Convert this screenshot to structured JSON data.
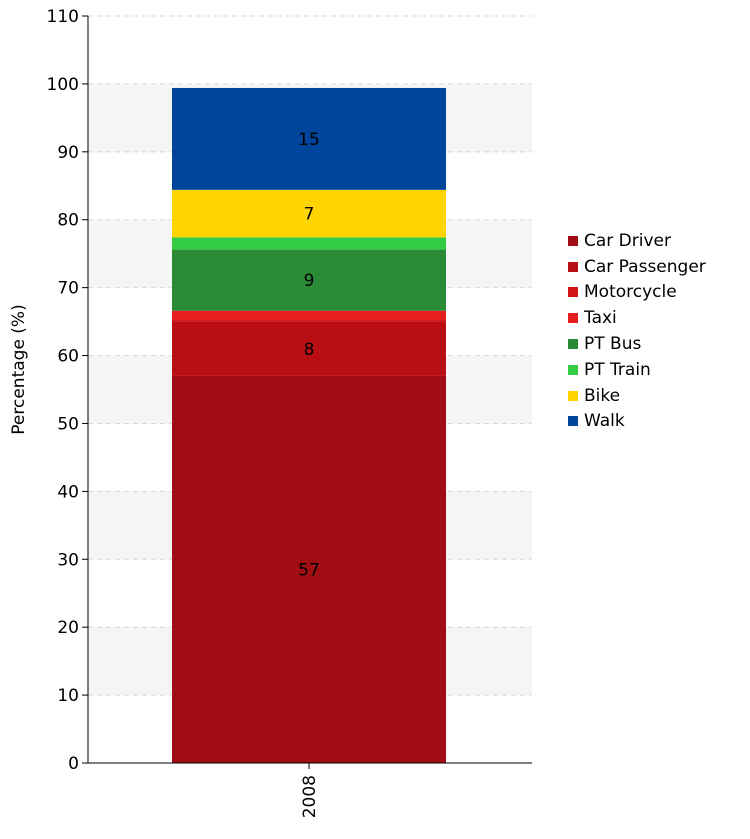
{
  "chart_data": {
    "type": "bar",
    "stacked": true,
    "categories": [
      "2008"
    ],
    "ylabel": "Percentage (%)",
    "xlabel": "",
    "ylim": [
      0,
      110
    ],
    "yticks": [
      0,
      10,
      20,
      30,
      40,
      50,
      60,
      70,
      80,
      90,
      100,
      110
    ],
    "grid": true,
    "legend_position": "right",
    "series": [
      {
        "name": "Car Driver",
        "values": [
          57
        ],
        "color": "#a00e13",
        "label": "57"
      },
      {
        "name": "Car Passenger",
        "values": [
          8
        ],
        "color": "#b90f14",
        "label": "8"
      },
      {
        "name": "Motorcycle",
        "values": [
          0.3
        ],
        "color": "#d31717",
        "label": ""
      },
      {
        "name": "Taxi",
        "values": [
          1.3
        ],
        "color": "#e61e1e",
        "label": ""
      },
      {
        "name": "PT Bus",
        "values": [
          9
        ],
        "color": "#2b8a36",
        "label": "9"
      },
      {
        "name": "PT Train",
        "values": [
          1.8
        ],
        "color": "#33cc44",
        "label": ""
      },
      {
        "name": "Bike",
        "values": [
          7
        ],
        "color": "#ffd400",
        "label": "7"
      },
      {
        "name": "Walk",
        "values": [
          15
        ],
        "color": "#00449b",
        "label": "15"
      }
    ]
  }
}
